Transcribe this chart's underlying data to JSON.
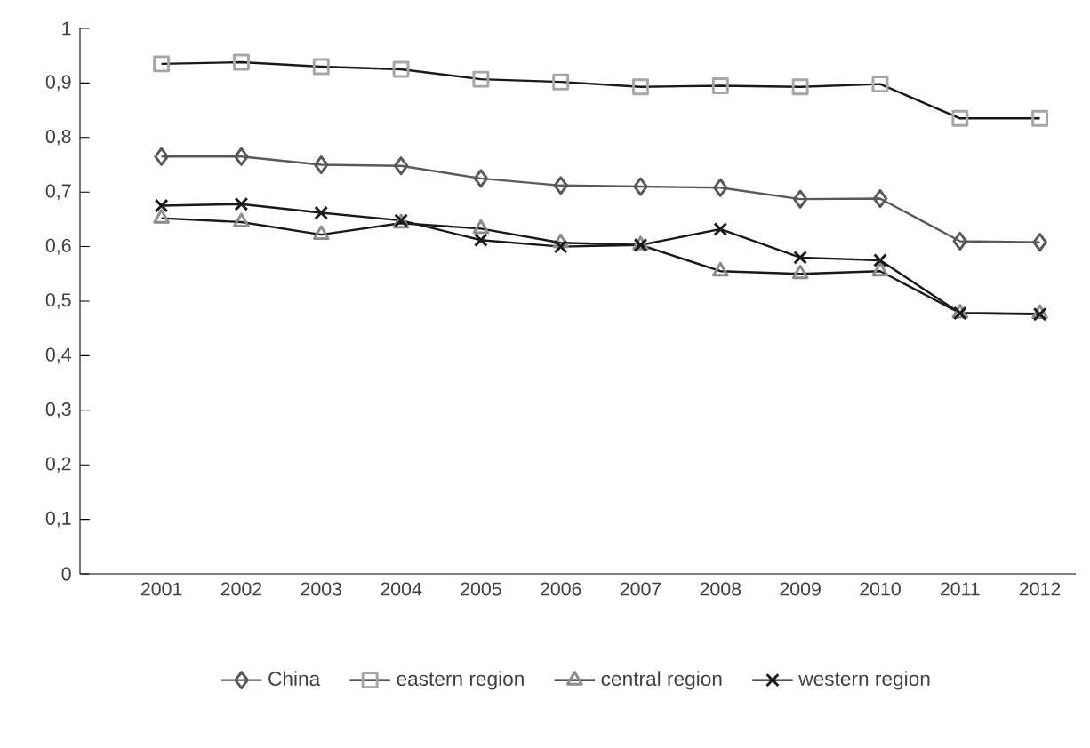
{
  "chart_data": {
    "type": "line",
    "categories": [
      "2001",
      "2002",
      "2003",
      "2004",
      "2005",
      "2006",
      "2007",
      "2008",
      "2009",
      "2010",
      "2011",
      "2012"
    ],
    "series": [
      {
        "name": "China",
        "color": "#595959",
        "marker": "diamond",
        "values": [
          0.765,
          0.765,
          0.75,
          0.748,
          0.725,
          0.712,
          0.71,
          0.708,
          0.687,
          0.688,
          0.61,
          0.608
        ]
      },
      {
        "name": "eastern region",
        "color": "#a6a6a6",
        "marker": "square",
        "values": [
          0.935,
          0.938,
          0.93,
          0.925,
          0.907,
          0.902,
          0.893,
          0.895,
          0.893,
          0.898,
          0.835,
          0.835
        ]
      },
      {
        "name": "central region",
        "color": "#8c8c8c",
        "marker": "triangle",
        "values": [
          0.652,
          0.645,
          0.622,
          0.643,
          0.633,
          0.607,
          0.603,
          0.555,
          0.55,
          0.555,
          0.478,
          0.477
        ]
      },
      {
        "name": "western region",
        "color": "#1a1a1a",
        "marker": "cross",
        "values": [
          0.675,
          0.678,
          0.662,
          0.648,
          0.612,
          0.6,
          0.603,
          0.632,
          0.58,
          0.575,
          0.478,
          0.476
        ]
      }
    ],
    "ylim": [
      0,
      1
    ],
    "yticks": [
      0,
      {
        "value": 0.1,
        "label": "0,1"
      },
      {
        "value": 0.2,
        "label": "0,2"
      },
      {
        "value": 0.3,
        "label": "0,3"
      },
      {
        "value": 0.4,
        "label": "0,4"
      },
      {
        "value": 0.5,
        "label": "0,5"
      },
      {
        "value": 0.6,
        "label": "0,6"
      },
      {
        "value": 0.7,
        "label": "0,7"
      },
      {
        "value": 0.8,
        "label": "0,8"
      },
      {
        "value": 0.9,
        "label": "0,9"
      },
      1
    ],
    "grid": false,
    "legend": "bottom"
  }
}
